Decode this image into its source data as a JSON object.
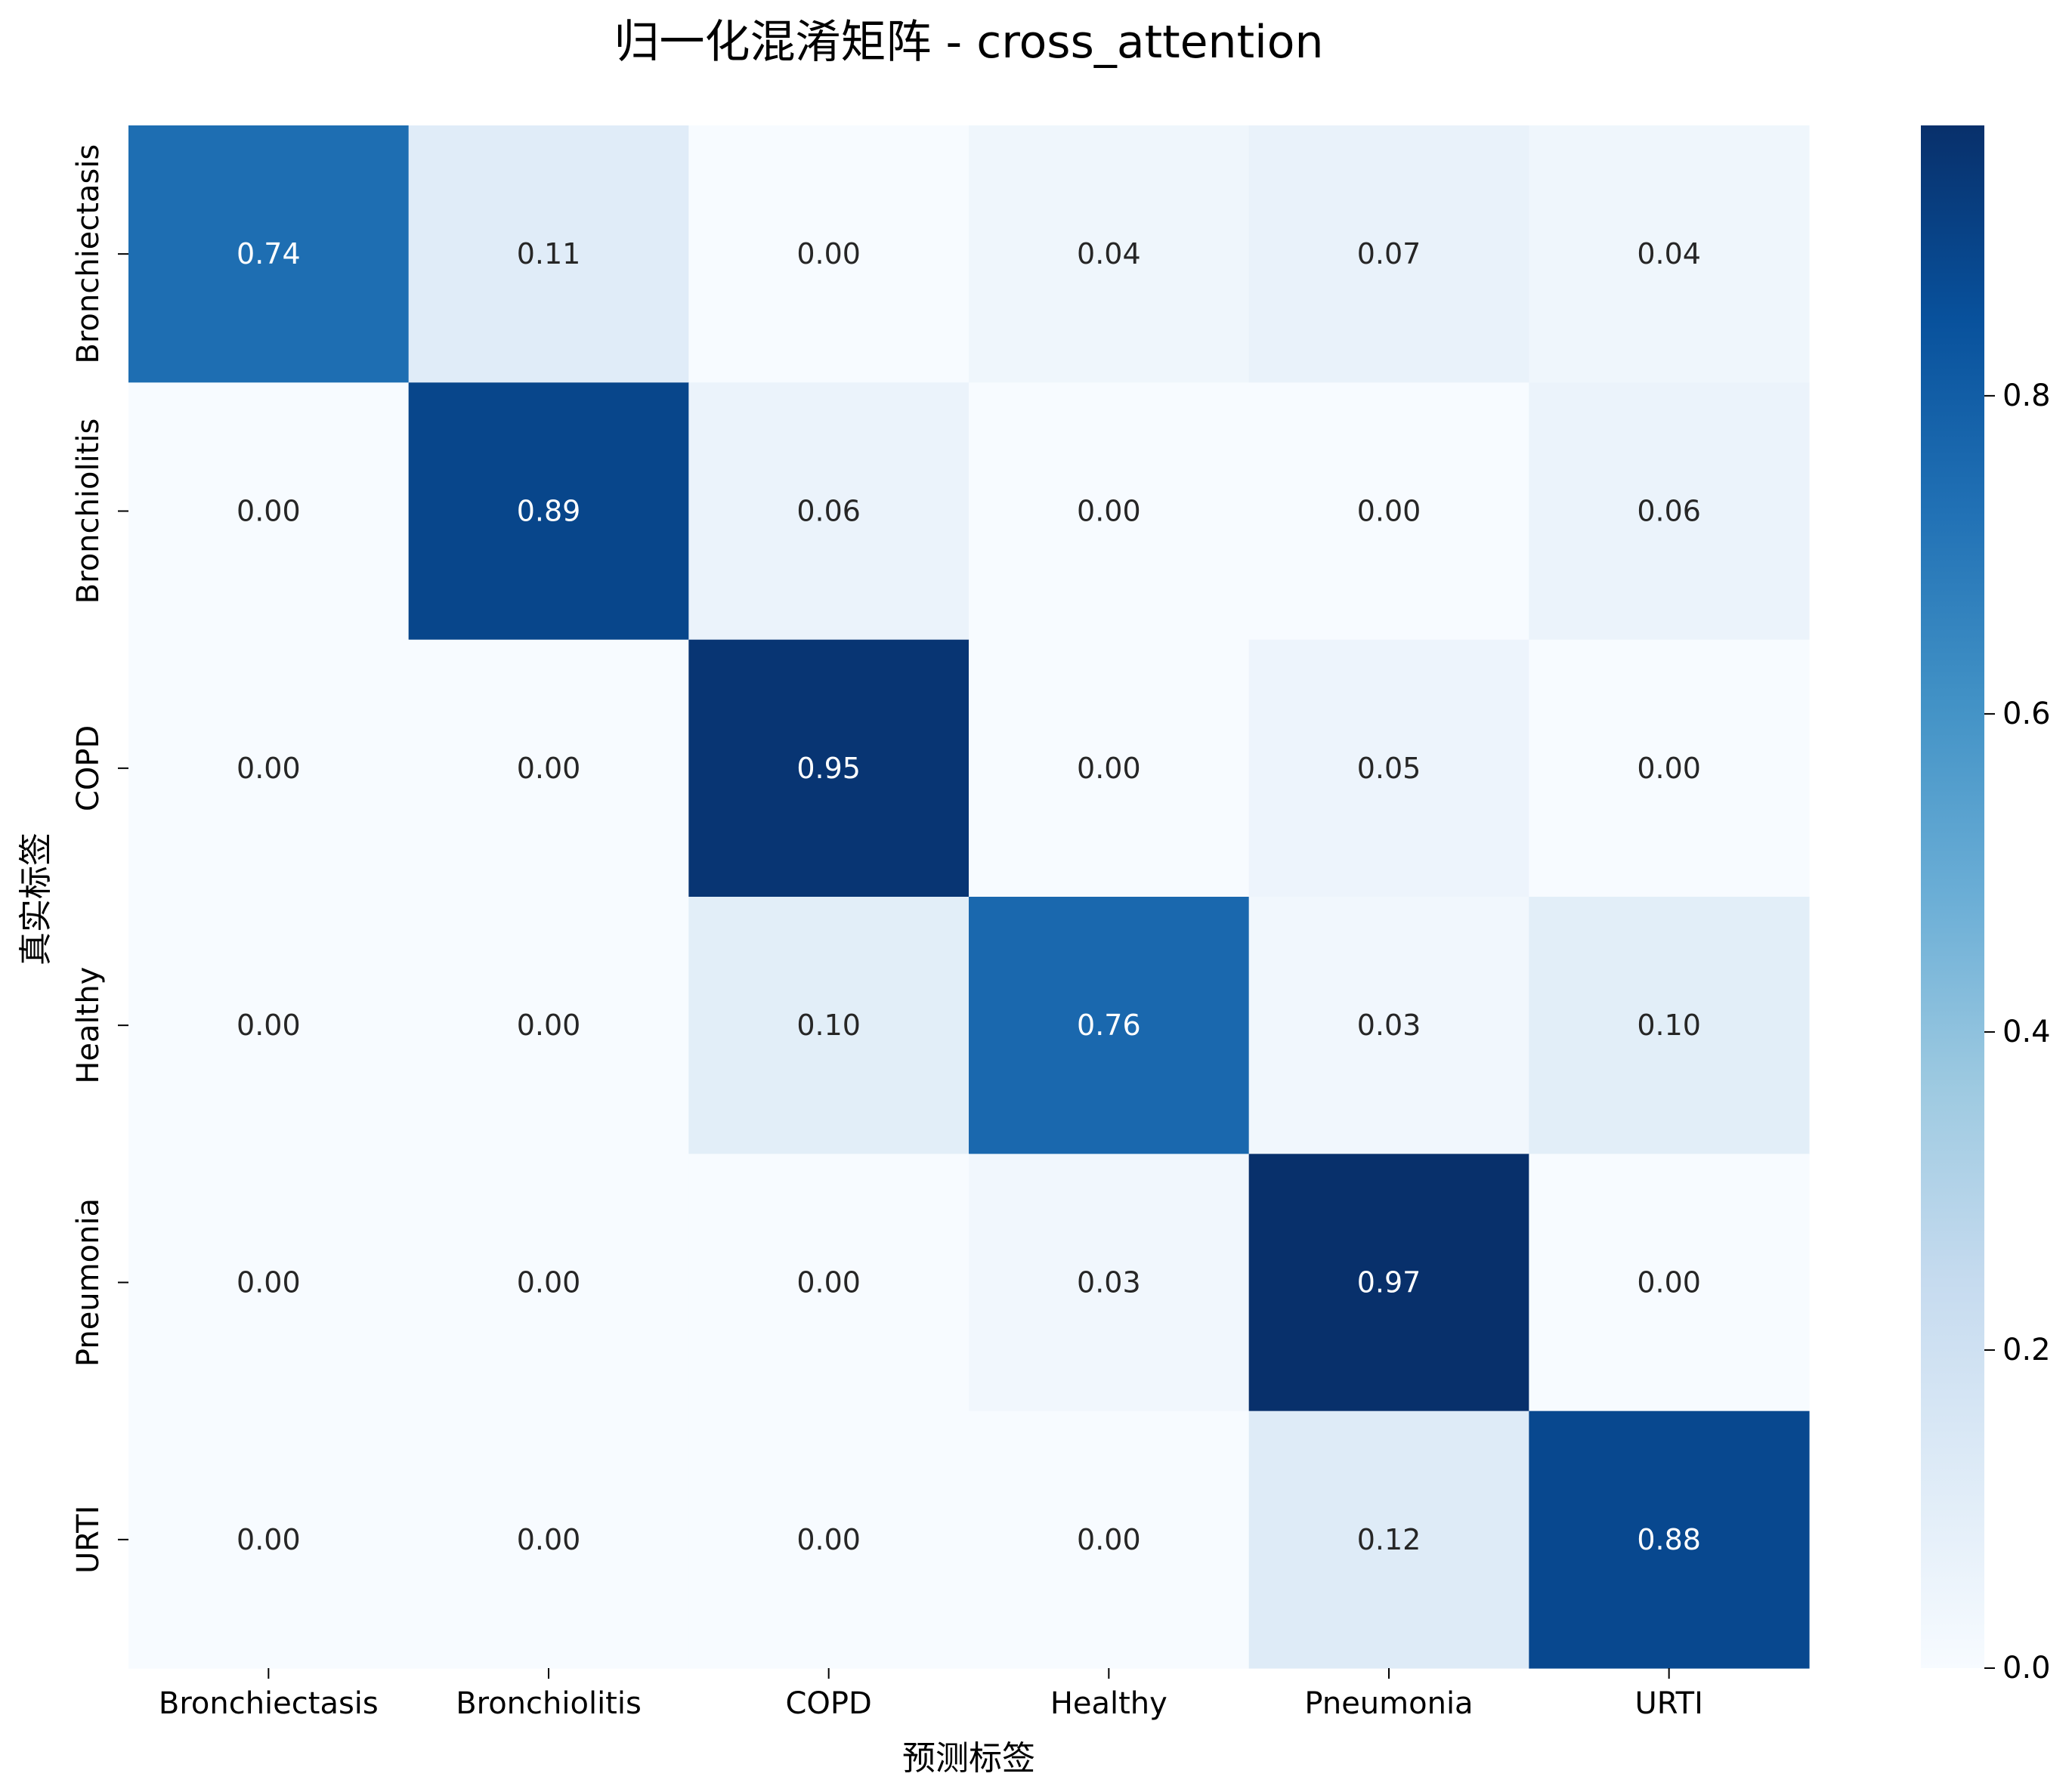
{
  "chart_data": {
    "type": "heatmap",
    "title": "归一化混淆矩阵 - cross_attention",
    "xlabel": "预测标签",
    "ylabel": "真实标签",
    "x_categories": [
      "Bronchiectasis",
      "Bronchiolitis",
      "COPD",
      "Healthy",
      "Pneumonia",
      "URTI"
    ],
    "y_categories": [
      "Bronchiectasis",
      "Bronchiolitis",
      "COPD",
      "Healthy",
      "Pneumonia",
      "URTI"
    ],
    "values": [
      [
        0.74,
        0.11,
        0.0,
        0.04,
        0.07,
        0.04
      ],
      [
        0.0,
        0.89,
        0.06,
        0.0,
        0.0,
        0.06
      ],
      [
        0.0,
        0.0,
        0.95,
        0.0,
        0.05,
        0.0
      ],
      [
        0.0,
        0.0,
        0.1,
        0.76,
        0.03,
        0.1
      ],
      [
        0.0,
        0.0,
        0.0,
        0.03,
        0.97,
        0.0
      ],
      [
        0.0,
        0.0,
        0.0,
        0.0,
        0.12,
        0.88
      ]
    ],
    "value_format": "0.00",
    "colormap": "Blues",
    "colorbar": {
      "range": [
        0.0,
        0.97
      ],
      "ticks": [
        0.0,
        0.2,
        0.4,
        0.6,
        0.8
      ],
      "tick_labels": [
        "0.0",
        "0.2",
        "0.4",
        "0.6",
        "0.8"
      ]
    },
    "grid": false,
    "legend": "none"
  }
}
